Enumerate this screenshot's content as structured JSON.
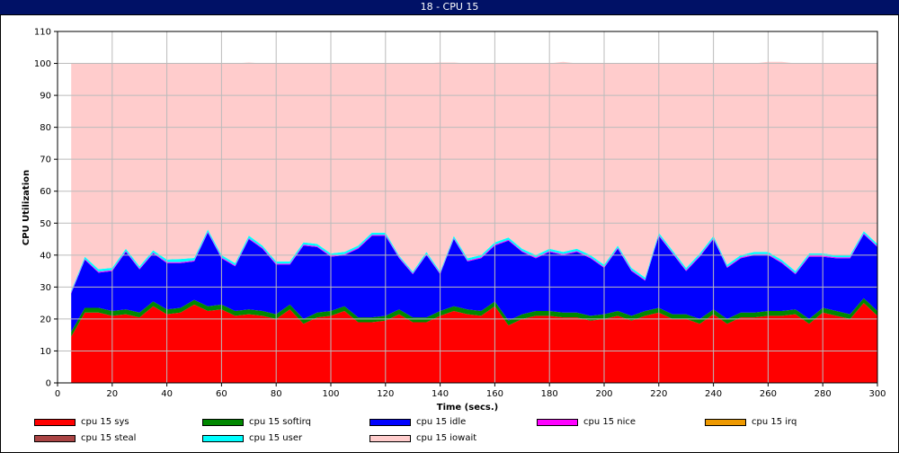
{
  "window": {
    "title": "18 - CPU 15"
  },
  "chart_data": {
    "type": "area",
    "stacked": true,
    "title": "18 - CPU 15",
    "xlabel": "Time (secs.)",
    "ylabel": "CPU Utilization",
    "xlim": [
      0,
      300
    ],
    "ylim": [
      0,
      110
    ],
    "xticks": [
      0,
      20,
      40,
      60,
      80,
      100,
      120,
      140,
      160,
      180,
      200,
      220,
      240,
      260,
      280,
      300
    ],
    "yticks": [
      0,
      10,
      20,
      30,
      40,
      50,
      60,
      70,
      80,
      90,
      100,
      110
    ],
    "grid": true,
    "legend_position": "bottom",
    "x": [
      5,
      10,
      15,
      20,
      25,
      30,
      35,
      40,
      45,
      50,
      55,
      60,
      65,
      70,
      75,
      80,
      85,
      90,
      95,
      100,
      105,
      110,
      115,
      120,
      125,
      130,
      135,
      140,
      145,
      150,
      155,
      160,
      165,
      170,
      175,
      180,
      185,
      190,
      195,
      200,
      205,
      210,
      215,
      220,
      225,
      230,
      235,
      240,
      245,
      250,
      255,
      260,
      265,
      270,
      275,
      280,
      285,
      290,
      295,
      300
    ],
    "series": [
      {
        "name": "cpu 15 sys",
        "color": "#ff0000",
        "values": [
          14.5,
          22,
          22,
          21,
          21.5,
          20.5,
          24,
          21.5,
          22,
          24.5,
          22.5,
          23,
          21,
          21.5,
          21,
          20,
          23,
          18.5,
          20.5,
          21,
          22.5,
          19,
          19,
          19.5,
          21.5,
          19,
          19,
          21,
          22.5,
          21.5,
          21,
          24,
          18,
          20,
          21,
          21,
          20.5,
          20.5,
          19.5,
          20,
          21,
          19.5,
          21,
          22,
          20,
          20,
          18.5,
          21.5,
          18.5,
          20.5,
          20.5,
          21,
          21,
          21.5,
          18.5,
          22,
          21,
          20,
          25,
          21
        ]
      },
      {
        "name": "cpu 15 softirq",
        "color": "#008800",
        "values": [
          1.5,
          1.5,
          1.5,
          1.5,
          1.5,
          1.5,
          1.5,
          1.5,
          1.5,
          1.5,
          1.5,
          1.5,
          1.5,
          1.5,
          1.5,
          1.5,
          1.5,
          1.5,
          1.5,
          1.5,
          1.5,
          1.5,
          1.5,
          1.5,
          1.5,
          1.5,
          1.5,
          1.5,
          1.5,
          1.5,
          1.5,
          1.5,
          1.5,
          1.5,
          1.5,
          1.5,
          1.5,
          1.5,
          1.5,
          1.5,
          1.5,
          1.5,
          1.5,
          1.5,
          1.5,
          1.5,
          1.5,
          1.5,
          1.5,
          1.5,
          1.5,
          1.5,
          1.5,
          1.5,
          1.5,
          1.5,
          1.5,
          1.5,
          1.5,
          1.5
        ]
      },
      {
        "name": "cpu 15 idle",
        "color": "#0000ff",
        "values": [
          12,
          15,
          11,
          12.5,
          18,
          13.5,
          15,
          14.5,
          14,
          12,
          23,
          14.5,
          14,
          22,
          19.5,
          15.5,
          12.5,
          23,
          20.5,
          17,
          16,
          21.5,
          25.5,
          25,
          16,
          13.5,
          19.5,
          11.5,
          21,
          15,
          16.5,
          17.5,
          25,
          19.5,
          16.5,
          18.5,
          18,
          19,
          18,
          14.5,
          19.5,
          14,
          9.5,
          22.5,
          19,
          13.5,
          19.5,
          22,
          16,
          17,
          18,
          17.5,
          15,
          11,
          19.5,
          16,
          16.5,
          17.5,
          20,
          20
        ]
      },
      {
        "name": "cpu 15 nice",
        "color": "#ff00ff",
        "values": [
          0.3,
          0.3,
          0.3,
          0.3,
          0.3,
          0.3,
          0.3,
          0.3,
          0.3,
          0.3,
          0.3,
          0.3,
          0.3,
          0.3,
          0.3,
          0.3,
          0.3,
          0.3,
          0.3,
          0.3,
          0.3,
          0.3,
          0.3,
          0.3,
          0.3,
          0.3,
          0.3,
          0.3,
          0.3,
          0.3,
          0.3,
          0.3,
          0.3,
          0.3,
          0.3,
          0.3,
          0.3,
          0.3,
          0.3,
          0.3,
          0.3,
          0.3,
          0.3,
          0.3,
          0.3,
          0.3,
          0.3,
          0.3,
          0.3,
          0.3,
          0.3,
          0.3,
          0.3,
          0.3,
          0.3,
          0.3,
          0.3,
          0.3,
          0.3,
          0.3
        ]
      },
      {
        "name": "cpu 15 irq",
        "color": "#ee9900",
        "values": [
          0,
          0,
          0,
          0,
          0,
          0,
          0,
          0,
          0,
          0,
          0,
          0,
          0,
          0,
          0,
          0,
          0,
          0,
          0,
          0,
          0,
          0,
          0,
          0,
          0,
          0,
          0,
          0,
          0,
          0,
          0,
          0,
          0,
          0,
          0,
          0,
          0,
          0,
          0,
          0,
          0,
          0,
          0,
          0,
          0,
          0,
          0,
          0,
          0,
          0,
          0,
          0,
          0,
          0,
          0,
          0,
          0,
          0,
          0,
          0
        ]
      },
      {
        "name": "cpu 15 steal",
        "color": "#aa4444",
        "values": [
          0,
          0,
          0,
          0,
          0,
          0,
          0,
          0,
          0,
          0,
          0,
          0,
          0,
          0,
          0,
          0,
          0,
          0,
          0,
          0,
          0,
          0,
          0,
          0,
          0,
          0,
          0,
          0,
          0,
          0,
          0,
          0,
          0,
          0,
          0,
          0,
          0,
          0,
          0,
          0,
          0,
          0,
          0,
          0,
          0,
          0,
          0,
          0,
          0,
          0,
          0,
          0,
          0,
          0,
          0,
          0,
          0,
          0,
          0,
          0
        ]
      },
      {
        "name": "cpu 15 user",
        "color": "#00ffff",
        "values": [
          0.5,
          0.7,
          0.8,
          0.7,
          0.7,
          0.7,
          0.7,
          0.8,
          1,
          0.8,
          0.7,
          0.7,
          0.7,
          0.8,
          0.7,
          0.7,
          0.7,
          0.7,
          0.7,
          0.7,
          0.7,
          0.7,
          0.7,
          0.7,
          0.5,
          0.5,
          0.7,
          0.5,
          0.7,
          0.7,
          0.7,
          0.7,
          0.7,
          0.7,
          0.7,
          0.7,
          0.7,
          0.7,
          0.7,
          0.7,
          0.7,
          0.7,
          0.7,
          0.7,
          0.7,
          0.7,
          0.7,
          0.7,
          0.7,
          0.7,
          0.7,
          0.7,
          0.7,
          0.7,
          0.7,
          0.7,
          0.7,
          0.7,
          0.7,
          0.7
        ]
      },
      {
        "name": "cpu 15 iowait",
        "color": "#ffcccc",
        "values": [
          71.2,
          60.5,
          64.4,
          64,
          58,
          63.5,
          58.5,
          61.4,
          61.2,
          60.9,
          52,
          60,
          62.5,
          54.2,
          57,
          62,
          62,
          56,
          56.5,
          59.5,
          59,
          57,
          53,
          53,
          60.2,
          65.2,
          59,
          65.5,
          54.3,
          61,
          60,
          56,
          54.5,
          58,
          60,
          58,
          59.5,
          58,
          60,
          63,
          57,
          64,
          67,
          53,
          58.5,
          64,
          59.5,
          54,
          63,
          60,
          59,
          59.5,
          62,
          65,
          59.5,
          59.5,
          60,
          60,
          52.5,
          56.5
        ]
      }
    ]
  }
}
